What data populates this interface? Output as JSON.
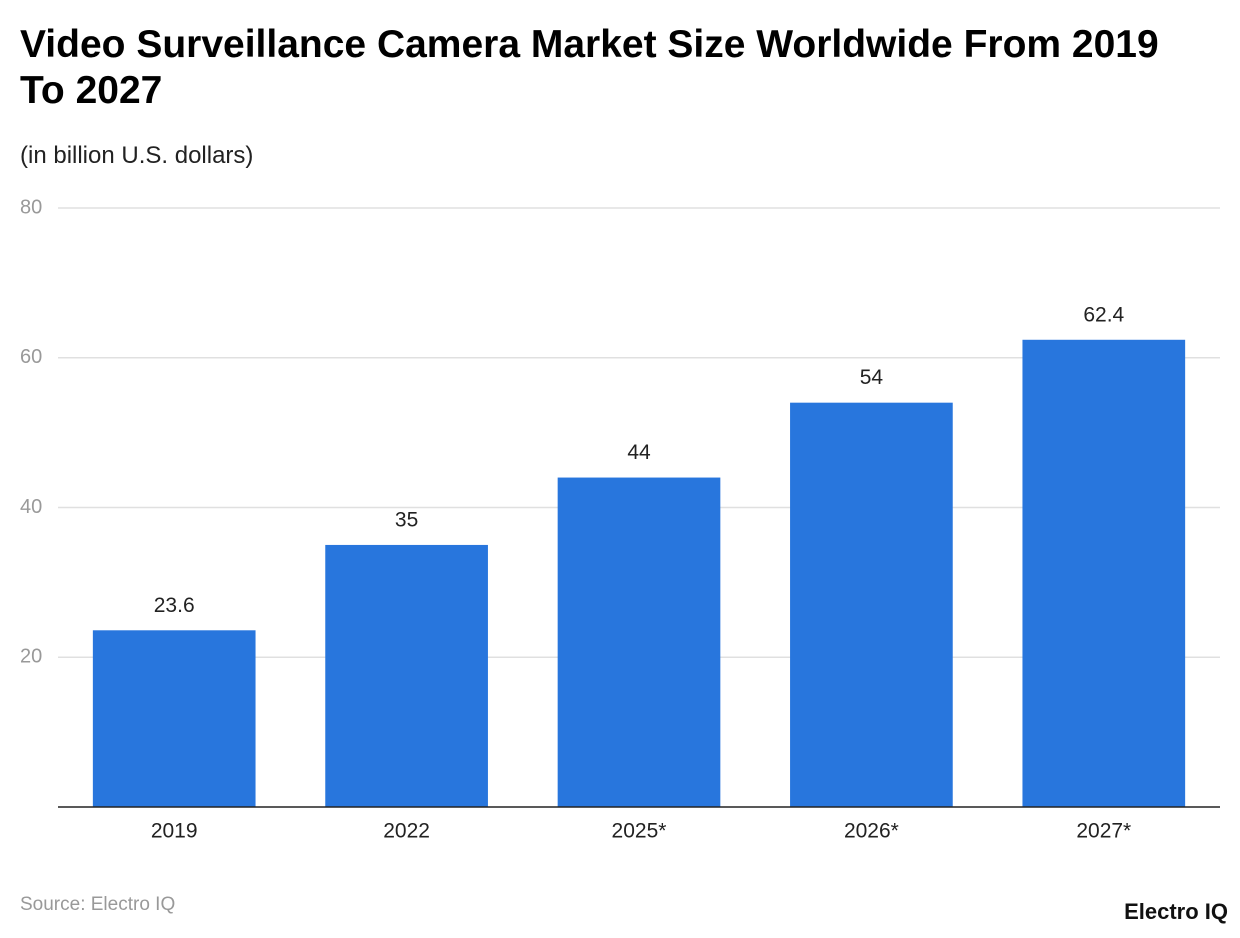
{
  "chart_data": {
    "type": "bar",
    "title": "Video Surveillance Camera Market Size Worldwide From 2019 To 2027",
    "subtitle": "(in billion U.S. dollars)",
    "categories": [
      "2019",
      "2022",
      "2025*",
      "2026*",
      "2027*"
    ],
    "values": [
      23.6,
      35,
      44,
      54,
      62.4
    ],
    "color": "#2876dd",
    "ylim": [
      0,
      80
    ],
    "yticks": [
      20,
      40,
      60,
      80
    ],
    "grid": true,
    "source": "Source: Electro IQ",
    "logo": "Electro IQ"
  }
}
